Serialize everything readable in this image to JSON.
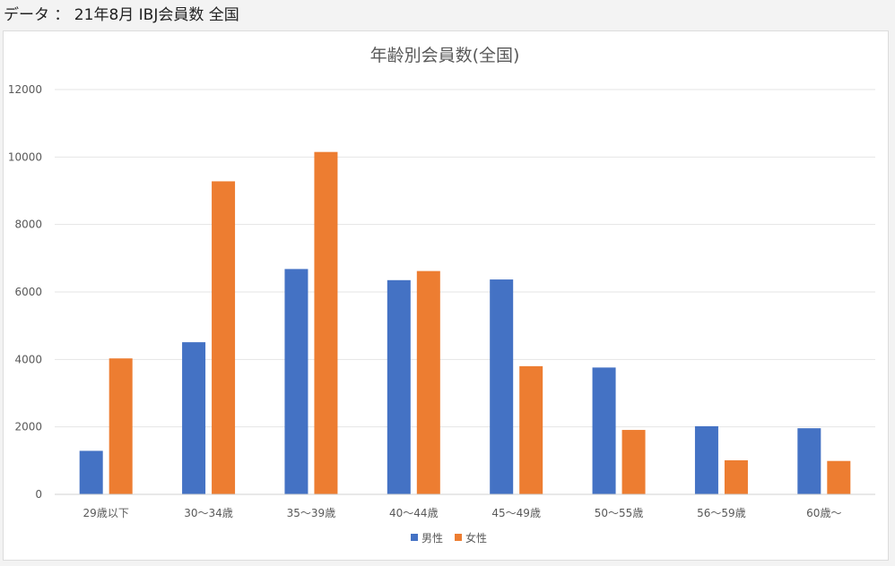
{
  "caption": "データ ： 21年8月 IBJ会員数 全国",
  "chart_data": {
    "type": "bar",
    "title": "年齢別会員数(全国)",
    "categories": [
      "29歳以下",
      "30～34歳",
      "35～39歳",
      "40～44歳",
      "45～49歳",
      "50～55歳",
      "56～59歳",
      "60歳～"
    ],
    "series": [
      {
        "name": "男性",
        "color": "#4472c4",
        "values": [
          1290,
          4510,
          6680,
          6350,
          6370,
          3760,
          2020,
          1960
        ]
      },
      {
        "name": "女性",
        "color": "#ed7d31",
        "values": [
          4030,
          9280,
          10150,
          6620,
          3800,
          1910,
          1010,
          990
        ]
      }
    ],
    "yticks": [
      "0",
      "2000",
      "4000",
      "6000",
      "8000",
      "10000",
      "12000"
    ],
    "ylim": [
      0,
      12000
    ],
    "grid": true,
    "legend_position": "bottom"
  }
}
